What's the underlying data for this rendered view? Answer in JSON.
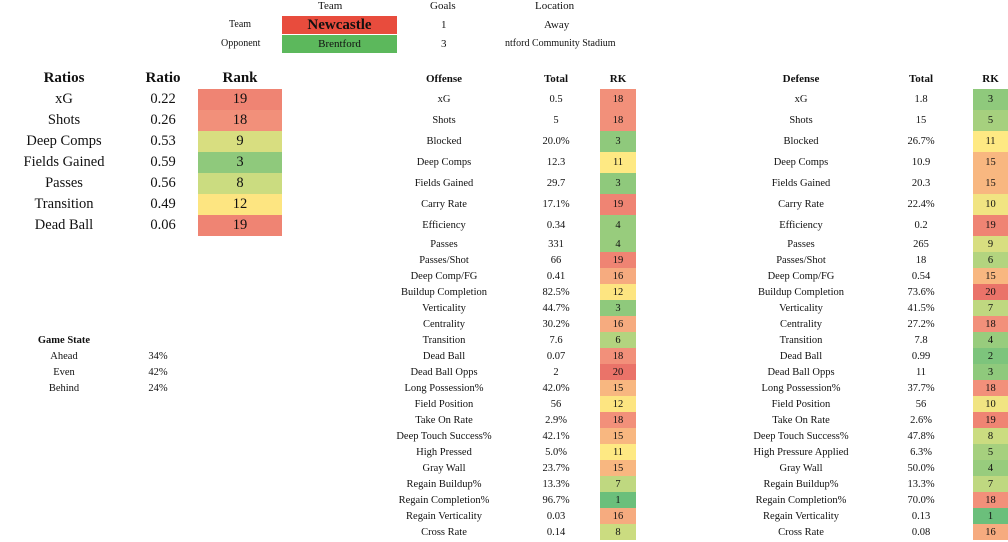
{
  "header": {
    "team_col": "Team",
    "goals_col": "Goals",
    "location_col": "Location",
    "team_label": "Team",
    "opponent_label": "Opponent",
    "team_name": "Newcastle",
    "opponent_name": "Brentford",
    "team_goals": "1",
    "opponent_goals": "3",
    "team_location": "Away",
    "opponent_location": "ntford Community Stadium"
  },
  "ratios": {
    "headers": [
      "Ratios",
      "Ratio",
      "Rank"
    ],
    "rows": [
      {
        "name": "xG",
        "ratio": "0.22",
        "rank": "19",
        "color": "#ef8473"
      },
      {
        "name": "Shots",
        "ratio": "0.26",
        "rank": "18",
        "color": "#f2907a"
      },
      {
        "name": "Deep Comps",
        "ratio": "0.53",
        "rank": "9",
        "color": "#d8de80"
      },
      {
        "name": "Fields Gained",
        "ratio": "0.59",
        "rank": "3",
        "color": "#8fc97c"
      },
      {
        "name": "Passes",
        "ratio": "0.56",
        "rank": "8",
        "color": "#cbdc80"
      },
      {
        "name": "Transition",
        "ratio": "0.49",
        "rank": "12",
        "color": "#fde581"
      },
      {
        "name": "Dead Ball",
        "ratio": "0.06",
        "rank": "19",
        "color": "#ef8473"
      }
    ]
  },
  "game_state": {
    "title": "Game State",
    "rows": [
      {
        "name": "Ahead",
        "value": "34%"
      },
      {
        "name": "Even",
        "value": "42%"
      },
      {
        "name": "Behind",
        "value": "24%"
      }
    ]
  },
  "offense": {
    "headers": [
      "Offense",
      "Total",
      "RK"
    ],
    "rows": [
      {
        "name": "xG",
        "total": "0.5",
        "rk": "18",
        "color": "#f2907a"
      },
      {
        "name": "Shots",
        "total": "5",
        "rk": "18",
        "color": "#f2907a"
      },
      {
        "name": "Blocked",
        "total": "20.0%",
        "rk": "3",
        "color": "#8fc97c"
      },
      {
        "name": "Deep Comps",
        "total": "12.3",
        "rk": "11",
        "color": "#fee983"
      },
      {
        "name": "Fields Gained",
        "total": "29.7",
        "rk": "3",
        "color": "#8fc97c"
      },
      {
        "name": "Carry Rate",
        "total": "17.1%",
        "rk": "19",
        "color": "#ef8473"
      },
      {
        "name": "Efficiency",
        "total": "0.34",
        "rk": "4",
        "color": "#98cc7d"
      },
      {
        "name": "Passes",
        "total": "331",
        "rk": "4",
        "color": "#98cc7d"
      },
      {
        "name": "Passes/Shot",
        "total": "66",
        "rk": "19",
        "color": "#ef8473"
      },
      {
        "name": "Deep Comp/FG",
        "total": "0.41",
        "rk": "16",
        "color": "#f6ab7f"
      },
      {
        "name": "Buildup Completion",
        "total": "82.5%",
        "rk": "12",
        "color": "#fde581"
      },
      {
        "name": "Verticality",
        "total": "44.7%",
        "rk": "3",
        "color": "#8fc97c"
      },
      {
        "name": "Centrality",
        "total": "30.2%",
        "rk": "16",
        "color": "#f6ab7f"
      },
      {
        "name": "Transition",
        "total": "7.6",
        "rk": "6",
        "color": "#b3d47f"
      },
      {
        "name": "Dead Ball",
        "total": "0.07",
        "rk": "18",
        "color": "#f2907a"
      },
      {
        "name": "Dead Ball Opps",
        "total": "2",
        "rk": "20",
        "color": "#ea7369"
      },
      {
        "name": "Long Possession%",
        "total": "42.0%",
        "rk": "15",
        "color": "#f8b780"
      },
      {
        "name": "Field Position",
        "total": "56",
        "rk": "12",
        "color": "#fde581"
      },
      {
        "name": "Take On Rate",
        "total": "2.9%",
        "rk": "18",
        "color": "#f2907a"
      },
      {
        "name": "Deep Touch Success%",
        "total": "42.1%",
        "rk": "15",
        "color": "#f8b780"
      },
      {
        "name": "High Pressed",
        "total": "5.0%",
        "rk": "11",
        "color": "#fee983"
      },
      {
        "name": "Gray Wall",
        "total": "23.7%",
        "rk": "15",
        "color": "#f8b780"
      },
      {
        "name": "Regain Buildup%",
        "total": "13.3%",
        "rk": "7",
        "color": "#bfd880"
      },
      {
        "name": "Regain Completion%",
        "total": "96.7%",
        "rk": "1",
        "color": "#6bbf7b"
      },
      {
        "name": "Regain Verticality",
        "total": "0.03",
        "rk": "16",
        "color": "#f6ab7f"
      },
      {
        "name": "Cross Rate",
        "total": "0.14",
        "rk": "8",
        "color": "#cbdc80"
      }
    ]
  },
  "defense": {
    "headers": [
      "Defense",
      "Total",
      "RK"
    ],
    "rows": [
      {
        "name": "xG",
        "total": "1.8",
        "rk": "3",
        "color": "#8fc97c"
      },
      {
        "name": "Shots",
        "total": "15",
        "rk": "5",
        "color": "#a6d07e"
      },
      {
        "name": "Blocked",
        "total": "26.7%",
        "rk": "11",
        "color": "#fee983"
      },
      {
        "name": "Deep Comps",
        "total": "10.9",
        "rk": "15",
        "color": "#f8b780"
      },
      {
        "name": "Fields Gained",
        "total": "20.3",
        "rk": "15",
        "color": "#f8b780"
      },
      {
        "name": "Carry Rate",
        "total": "22.4%",
        "rk": "10",
        "color": "#f1e482"
      },
      {
        "name": "Efficiency",
        "total": "0.2",
        "rk": "19",
        "color": "#ef8473"
      },
      {
        "name": "Passes",
        "total": "265",
        "rk": "9",
        "color": "#d8de80"
      },
      {
        "name": "Passes/Shot",
        "total": "18",
        "rk": "6",
        "color": "#b3d47f"
      },
      {
        "name": "Deep Comp/FG",
        "total": "0.54",
        "rk": "15",
        "color": "#f8b780"
      },
      {
        "name": "Buildup Completion",
        "total": "73.6%",
        "rk": "20",
        "color": "#ea7369"
      },
      {
        "name": "Verticality",
        "total": "41.5%",
        "rk": "7",
        "color": "#bfd880"
      },
      {
        "name": "Centrality",
        "total": "27.2%",
        "rk": "18",
        "color": "#f2907a"
      },
      {
        "name": "Transition",
        "total": "7.8",
        "rk": "4",
        "color": "#98cc7d"
      },
      {
        "name": "Dead Ball",
        "total": "0.99",
        "rk": "2",
        "color": "#7dc47c"
      },
      {
        "name": "Dead Ball Opps",
        "total": "11",
        "rk": "3",
        "color": "#8fc97c"
      },
      {
        "name": "Long Possession%",
        "total": "37.7%",
        "rk": "18",
        "color": "#f2907a"
      },
      {
        "name": "Field Position",
        "total": "56",
        "rk": "10",
        "color": "#f1e482"
      },
      {
        "name": "Take On Rate",
        "total": "2.6%",
        "rk": "19",
        "color": "#ef8473"
      },
      {
        "name": "Deep Touch Success%",
        "total": "47.8%",
        "rk": "8",
        "color": "#cbdc80"
      },
      {
        "name": "High Pressure Applied",
        "total": "6.3%",
        "rk": "5",
        "color": "#a6d07e"
      },
      {
        "name": "Gray Wall",
        "total": "50.0%",
        "rk": "4",
        "color": "#98cc7d"
      },
      {
        "name": "Regain Buildup%",
        "total": "13.3%",
        "rk": "7",
        "color": "#bfd880"
      },
      {
        "name": "Regain Completion%",
        "total": "70.0%",
        "rk": "18",
        "color": "#f2907a"
      },
      {
        "name": "Regain Verticality",
        "total": "0.13",
        "rk": "1",
        "color": "#6bbf7b"
      },
      {
        "name": "Cross Rate",
        "total": "0.08",
        "rk": "16",
        "color": "#f6ab7f"
      }
    ]
  }
}
